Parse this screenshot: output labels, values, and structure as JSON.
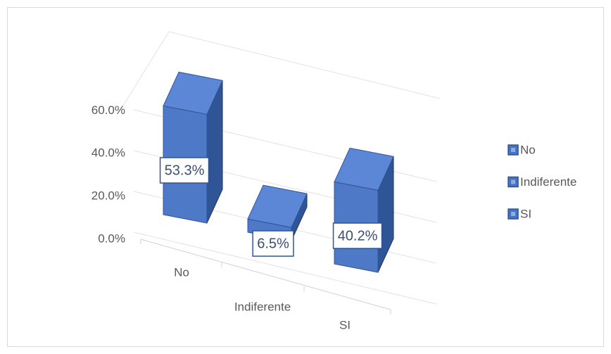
{
  "chart_data": {
    "type": "bar3d",
    "categories": [
      "No",
      "Indiferente",
      "SI"
    ],
    "values": [
      53.3,
      6.5,
      40.2
    ],
    "value_labels": [
      "53.3%",
      "6.5%",
      "40.2%"
    ],
    "color": "#4472c4",
    "ylim": [
      0,
      80
    ],
    "yticks": [
      {
        "value": 0,
        "label": "0.0%"
      },
      {
        "value": 20,
        "label": "20.0%"
      },
      {
        "value": 40,
        "label": "40.0%"
      },
      {
        "value": 60,
        "label": "60.0%"
      }
    ],
    "grid": true,
    "legend": "right"
  }
}
